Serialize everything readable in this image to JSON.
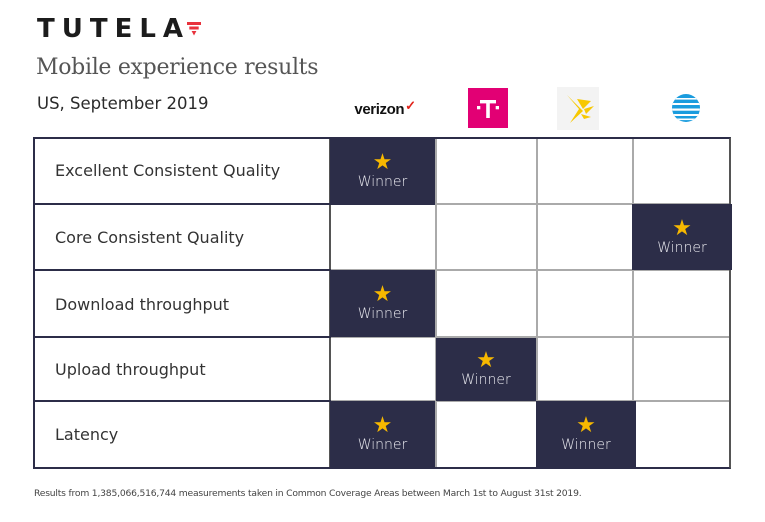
{
  "brand": {
    "logo_text": "TUTELA",
    "accent_color": "#e8323c"
  },
  "header": {
    "subtitle": "Mobile experience results",
    "region_date": "US, September 2019"
  },
  "carriers": [
    {
      "name": "verizon",
      "logo_text": "verizon",
      "brand_color": "#e2231a"
    },
    {
      "name": "T-Mobile",
      "logo_text": "T",
      "brand_color": "#e20074"
    },
    {
      "name": "Sprint",
      "logo_text": "",
      "brand_color": "#f7c800"
    },
    {
      "name": "AT&T",
      "logo_text": "",
      "brand_color": "#1a9cde"
    }
  ],
  "table": {
    "winner_label": "Winner",
    "winner_bg": "#2c2d48",
    "star_color": "#f7b800",
    "rows": [
      {
        "metric": "Excellent Consistent Quality",
        "winners": [
          true,
          false,
          false,
          false
        ]
      },
      {
        "metric": "Core Consistent Quality",
        "winners": [
          false,
          false,
          false,
          true
        ]
      },
      {
        "metric": "Download throughput",
        "winners": [
          true,
          false,
          false,
          false
        ]
      },
      {
        "metric": "Upload throughput",
        "winners": [
          false,
          true,
          false,
          false
        ]
      },
      {
        "metric": "Latency",
        "winners": [
          true,
          false,
          true,
          false
        ]
      }
    ]
  },
  "footnote": "Results from 1,385,066,516,744 measurements taken in Common Coverage Areas between March 1st to August 31st 2019."
}
